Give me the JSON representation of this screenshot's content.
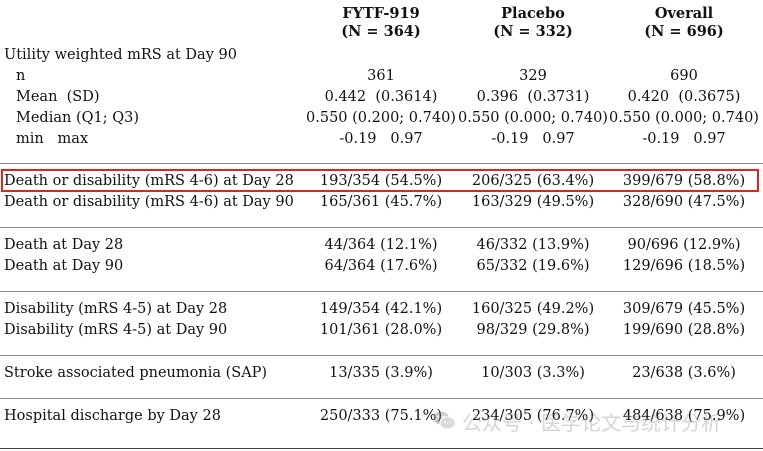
{
  "headers": [
    {
      "name": "FYTF-919",
      "n": "(N = 364)"
    },
    {
      "name": "Placebo",
      "n": "(N = 332)"
    },
    {
      "name": "Overall",
      "n": "(N = 696)"
    }
  ],
  "utility_section": {
    "title": "Utility weighted mRS at Day 90",
    "rows": [
      {
        "label": "n",
        "values": [
          "361",
          "329",
          "690"
        ]
      },
      {
        "label": "Mean  (SD)",
        "values": [
          "0.442  (0.3614)",
          "0.396  (0.3731)",
          "0.420  (0.3675)"
        ]
      },
      {
        "label": "Median (Q1; Q3)",
        "values": [
          "0.550 (0.200; 0.740)",
          "0.550 (0.000; 0.740)",
          "0.550 (0.000; 0.740)"
        ]
      },
      {
        "label": "min   max",
        "values": [
          "-0.19   0.97",
          "-0.19   0.97",
          "-0.19   0.97"
        ]
      }
    ]
  },
  "death_disability": [
    {
      "label": "Death or disability (mRS 4-6) at Day 28",
      "values": [
        "193/354 (54.5%)",
        "206/325 (63.4%)",
        "399/679 (58.8%)"
      ],
      "highlighted": true
    },
    {
      "label": "Death or disability (mRS 4-6) at Day 90",
      "values": [
        "165/361 (45.7%)",
        "163/329 (49.5%)",
        "328/690 (47.5%)"
      ]
    }
  ],
  "death": [
    {
      "label": "Death at Day 28",
      "values": [
        "44/364 (12.1%)",
        "46/332 (13.9%)",
        "90/696 (12.9%)"
      ]
    },
    {
      "label": "Death at Day 90",
      "values": [
        "64/364 (17.6%)",
        "65/332 (19.6%)",
        "129/696 (18.5%)"
      ]
    }
  ],
  "disability": [
    {
      "label": "Disability (mRS 4-5) at Day 28",
      "values": [
        "149/354 (42.1%)",
        "160/325 (49.2%)",
        "309/679 (45.5%)"
      ]
    },
    {
      "label": "Disability (mRS 4-5) at Day 90",
      "values": [
        "101/361 (28.0%)",
        "98/329 (29.8%)",
        "199/690 (28.8%)"
      ]
    }
  ],
  "sap": [
    {
      "label": "Stroke associated pneumonia (SAP)",
      "values": [
        "13/335 (3.9%)",
        "10/303 (3.3%)",
        "23/638 (3.6%)"
      ]
    }
  ],
  "discharge": [
    {
      "label": "Hospital discharge by Day 28",
      "values": [
        "250/333 (75.1%)",
        "234/305 (76.7%)",
        "484/638 (75.9%)"
      ]
    }
  ],
  "watermark": {
    "text": "公众号 · 医学论文与统计分析",
    "icon": "wechat-icon"
  },
  "colors": {
    "highlight_border": "#e0241b",
    "rule": "#8a8a8a"
  }
}
